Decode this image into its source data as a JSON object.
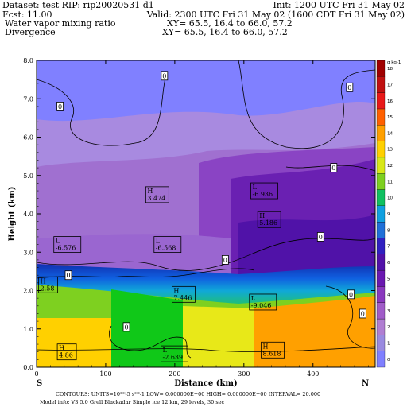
{
  "header": {
    "dataset": "Dataset: test  RIP: rip20020531 d1",
    "init": "Init: 1200 UTC Fri 31 May 02",
    "fcst": "Fcst:    11.00",
    "valid": "Valid: 2300 UTC Fri 31 May 02 (1600 CDT Fri 31 May 02)",
    "field1": "Water vapor mixing ratio",
    "xy1": "XY=   65.5, 16.4 to   66.0, 57.2",
    "field2": "Divergence",
    "xy2": "XY=   65.5, 16.4 to   66.0, 57.2"
  },
  "footer": {
    "contours": "CONTOURS:  UNITS=10**-5 s**-1   LOW= 0.000000E+00  HIGH= 0.000000E+00  INTERVAL=    20.000",
    "model": "Model info: V3.5.0   Grell     Blackadar   Simple ice    12 km,  29 levels,   30 sec"
  },
  "chart_data": {
    "type": "heatmap",
    "xlabel": "Distance (km)",
    "ylabel": "Height (km)",
    "xlim": [
      0,
      490
    ],
    "ylim": [
      0,
      8
    ],
    "xticks": [
      "0",
      "100",
      "200",
      "300",
      "400"
    ],
    "yticks": [
      "0.0",
      "1.0",
      "2.0",
      "3.0",
      "4.0",
      "5.0",
      "6.0",
      "7.0",
      "8.0"
    ],
    "x_end_labels": {
      "left": "S",
      "right": "N"
    },
    "colorbar": {
      "unit": "g kg-1",
      "levels": [
        "0",
        "1",
        "2",
        "3",
        "4",
        "5",
        "6",
        "7",
        "8",
        "9",
        "10",
        "11",
        "12",
        "13",
        "14",
        "15",
        "16",
        "17",
        "18"
      ],
      "colors": [
        "#8080ff",
        "#9a8ae0",
        "#b07ed2",
        "#a05cc8",
        "#8a38be",
        "#6a18b0",
        "#5010a8",
        "#3020c0",
        "#2070d8",
        "#10a0e0",
        "#10c060",
        "#7ed020",
        "#d8e818",
        "#ffd000",
        "#ffa000",
        "#ff6000",
        "#e81818",
        "#c01010",
        "#a00000"
      ]
    },
    "divergence_contours": [
      {
        "label": "0",
        "x": 185,
        "y": 7.6
      },
      {
        "label": "0",
        "x": 34,
        "y": 6.8
      },
      {
        "label": "0",
        "x": 453,
        "y": 7.3
      },
      {
        "label": "0",
        "x": 430,
        "y": 5.2
      },
      {
        "label": "0",
        "x": 411,
        "y": 3.4
      },
      {
        "label": "0",
        "x": 273,
        "y": 2.8
      },
      {
        "label": "0",
        "x": 46,
        "y": 2.4
      },
      {
        "label": "0",
        "x": 455,
        "y": 1.9
      },
      {
        "label": "0",
        "x": 472,
        "y": 1.4
      },
      {
        "label": "0",
        "x": 130,
        "y": 1.05
      }
    ],
    "extrema": [
      {
        "kind": "H",
        "value": "3.474",
        "x": 158,
        "y": 4.5
      },
      {
        "kind": "L",
        "value": "-6.936",
        "x": 310,
        "y": 4.6
      },
      {
        "kind": "H",
        "value": "5.186",
        "x": 320,
        "y": 3.85
      },
      {
        "kind": "L",
        "value": "-6.576",
        "x": 25,
        "y": 3.2
      },
      {
        "kind": "L",
        "value": "-6.568",
        "x": 170,
        "y": 3.2
      },
      {
        "kind": "H",
        "value": "2.58",
        "x": 3,
        "y": 2.15
      },
      {
        "kind": "H",
        "value": "7.446",
        "x": 196,
        "y": 1.9
      },
      {
        "kind": "L",
        "value": "-9.046",
        "x": 308,
        "y": 1.7
      },
      {
        "kind": "H",
        "value": "4.86",
        "x": 30,
        "y": 0.4
      },
      {
        "kind": "L",
        "value": "-2.639",
        "x": 180,
        "y": 0.35
      },
      {
        "kind": "H",
        "value": "8.618",
        "x": 325,
        "y": 0.45
      }
    ]
  }
}
